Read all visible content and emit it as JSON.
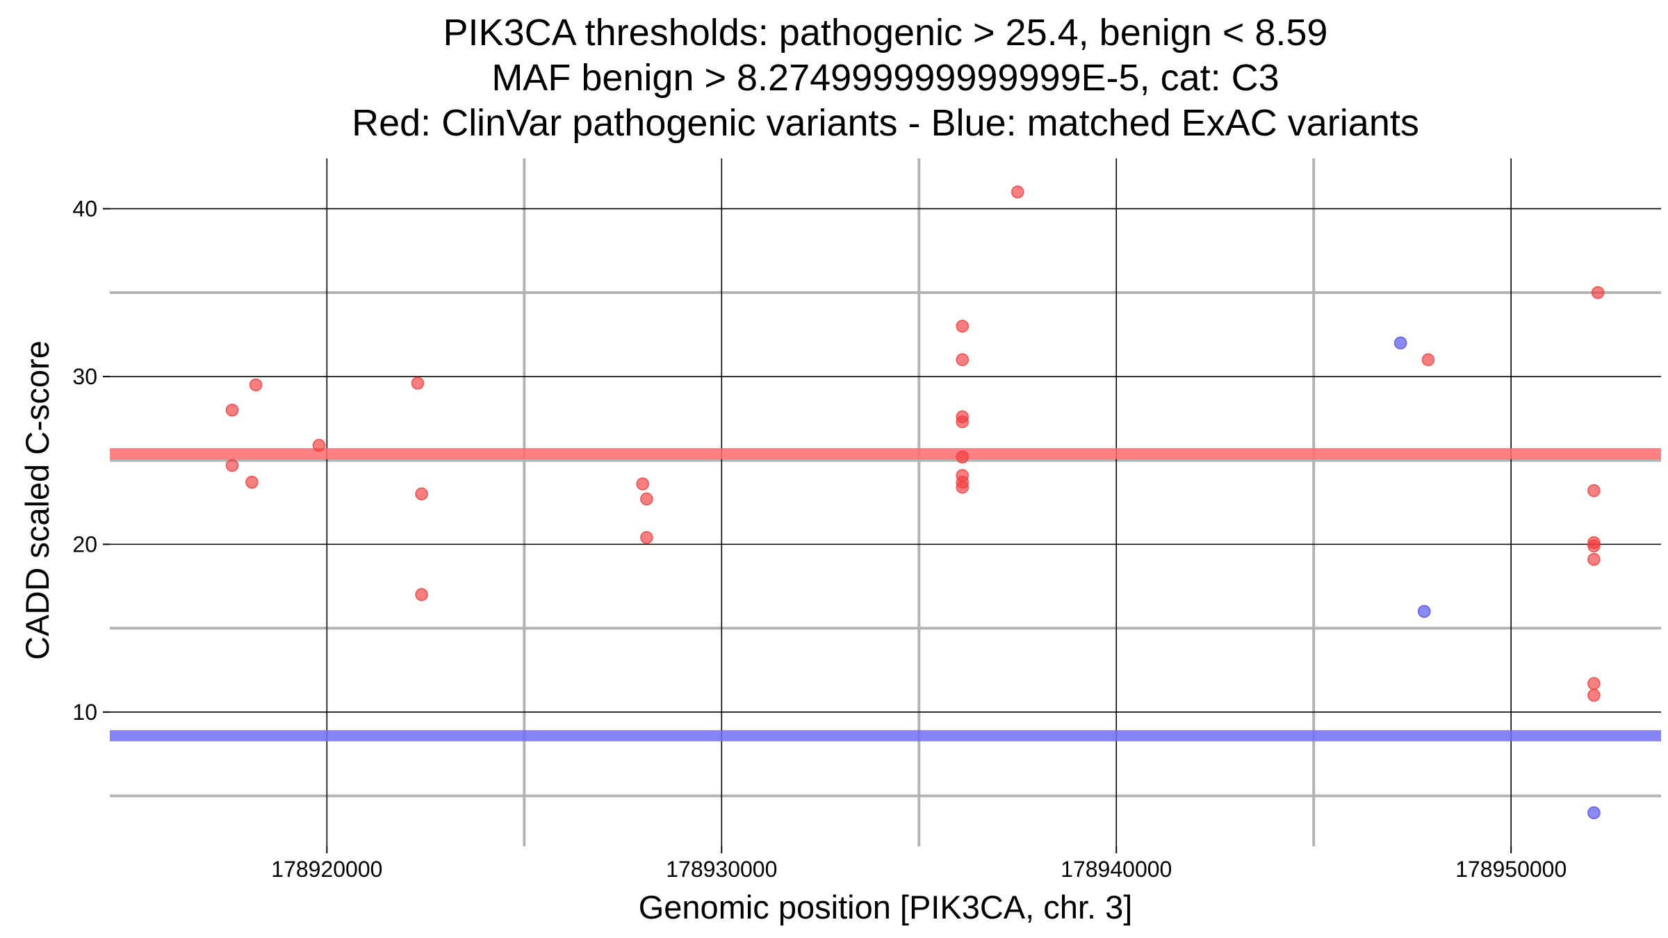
{
  "chart_data": {
    "type": "scatter",
    "title_lines": [
      "PIK3CA thresholds: pathogenic > 25.4, benign < 8.59",
      "MAF benign > 8.274999999999999E-5, cat: C3",
      "Red: ClinVar pathogenic variants - Blue: matched ExAC variants"
    ],
    "xlabel": "Genomic position [PIK3CA, chr. 3]",
    "ylabel": "CADD scaled C-score",
    "xlim": [
      178914500,
      178953800
    ],
    "ylim": [
      2,
      43
    ],
    "x_ticks": [
      178920000,
      178930000,
      178940000,
      178950000
    ],
    "x_tick_labels": [
      "178920000",
      "178930000",
      "178940000",
      "178950000"
    ],
    "x_minor_grid": [
      178925000,
      178935000,
      178945000
    ],
    "y_ticks": [
      10,
      20,
      30,
      40
    ],
    "y_tick_labels": [
      "10",
      "20",
      "30",
      "40"
    ],
    "y_minor_grid": [
      5,
      15,
      25,
      35
    ],
    "grid": true,
    "thresholds": [
      {
        "name": "pathogenic",
        "y": 25.4,
        "color": "#ff6b6b"
      },
      {
        "name": "benign",
        "y": 8.59,
        "color": "#6f6ff2"
      }
    ],
    "series": [
      {
        "color": "#f23b3b",
        "points": [
          [
            178917600,
            28
          ],
          [
            178917600,
            24.7
          ],
          [
            178918200,
            29.5
          ],
          [
            178918100,
            23.7
          ],
          [
            178919800,
            25.9
          ],
          [
            178922300,
            29.6
          ],
          [
            178922400,
            23
          ],
          [
            178922400,
            17
          ],
          [
            178928000,
            23.6
          ],
          [
            178928100,
            22.7
          ],
          [
            178928100,
            20.4
          ],
          [
            178936100,
            33
          ],
          [
            178936100,
            31
          ],
          [
            178936100,
            27.6
          ],
          [
            178936100,
            27.3
          ],
          [
            178936100,
            25.2
          ],
          [
            178936100,
            24.1
          ],
          [
            178936100,
            23.7
          ],
          [
            178936100,
            23.4
          ],
          [
            178937500,
            41
          ],
          [
            178947900,
            31
          ],
          [
            178952200,
            35
          ],
          [
            178952100,
            23.2
          ],
          [
            178952100,
            20.1
          ],
          [
            178952100,
            19.9
          ],
          [
            178952100,
            19.1
          ],
          [
            178952100,
            11.7
          ],
          [
            178952100,
            11
          ]
        ]
      },
      {
        "color": "#4b4bf0",
        "points": [
          [
            178947200,
            32
          ],
          [
            178947800,
            16
          ],
          [
            178952100,
            4
          ]
        ]
      }
    ]
  }
}
